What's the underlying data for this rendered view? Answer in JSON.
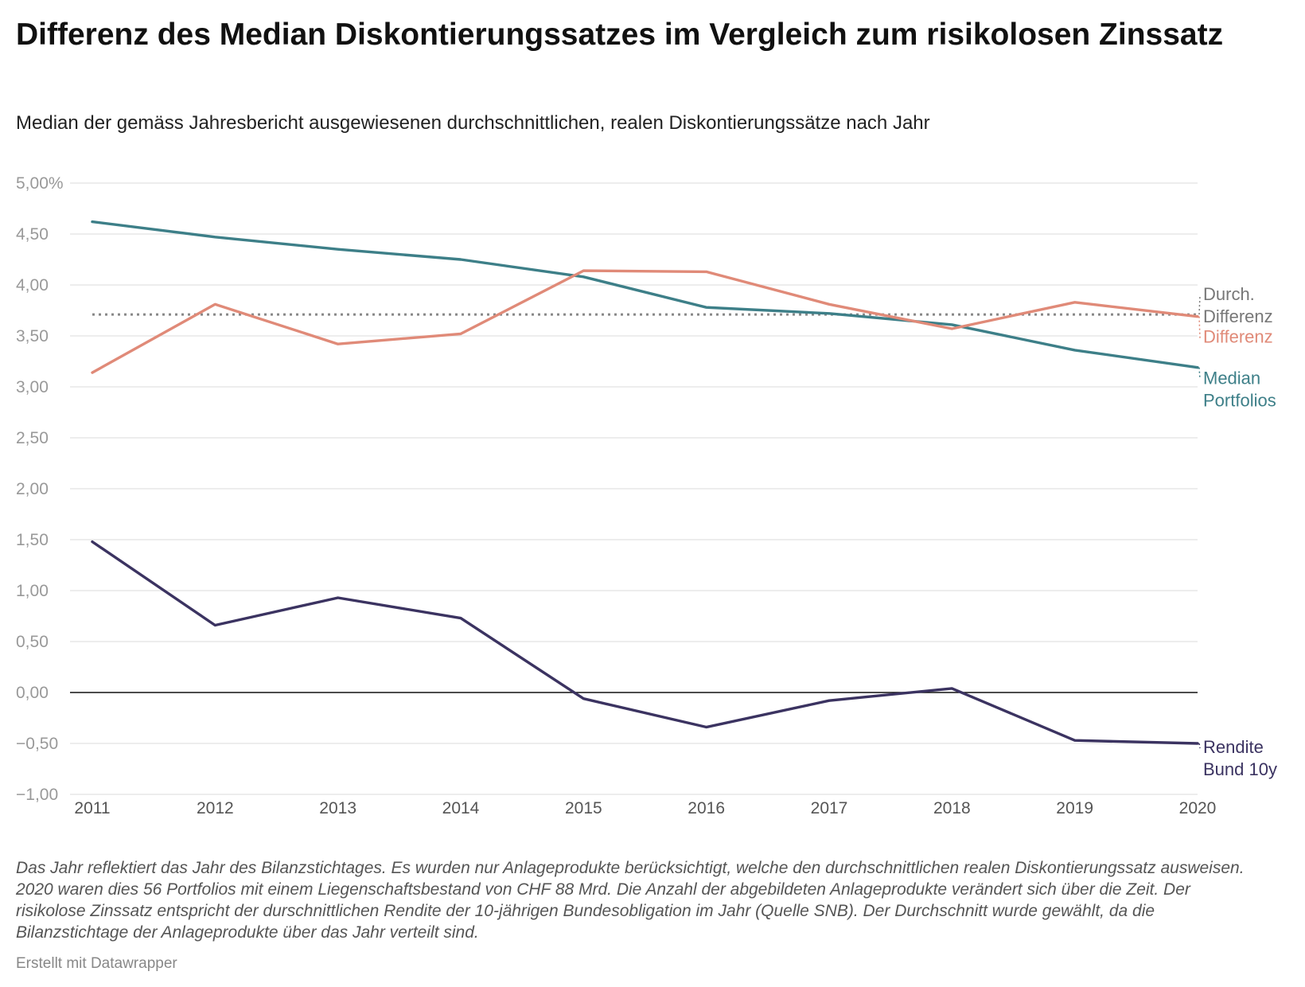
{
  "title": "Differenz des Median Diskontierungssatzes im Vergleich zum risikolosen Zinssatz",
  "subtitle": "Median der gemäss Jahresbericht ausgewiesenen durchschnittlichen, realen Diskontierungssätze nach Jahr",
  "notes": "Das Jahr reflektiert das Jahr des Bilanzstichtages. Es wurden nur Anlageprodukte berücksichtigt, welche den durchschnittlichen realen Diskontierungssatz ausweisen. 2020 waren dies 56 Portfolios mit einem Liegenschaftsbestand von CHF 88 Mrd. Die Anzahl der abgebildeten Anlageprodukte verändert sich über die Zeit. Der risikolose Zinssatz entspricht der durschnittlichen Rendite der 10-jährigen Bundesobligation im Jahr (Quelle SNB). Der Durchschnitt wurde gewählt, da die Bilanzstichtage der Anlageprodukte über das Jahr verteilt sind.",
  "credit": "Erstellt mit Datawrapper",
  "chart_data": {
    "type": "line",
    "x": [
      "2011",
      "2012",
      "2013",
      "2014",
      "2015",
      "2016",
      "2017",
      "2018",
      "2019",
      "2020"
    ],
    "ylim": [
      -1.0,
      5.0
    ],
    "yticks": [
      5.0,
      4.5,
      4.0,
      3.5,
      3.0,
      2.5,
      2.0,
      1.5,
      1.0,
      0.5,
      0.0,
      -0.5,
      -1.0
    ],
    "ytick_labels": [
      "5,00%",
      "4,50",
      "4,00",
      "3,50",
      "3,00",
      "2,50",
      "2,00",
      "1,50",
      "1,00",
      "0,50",
      "0,00",
      "−0,50",
      "−1,00"
    ],
    "grid": true,
    "legend": "direct labels at right end",
    "series": [
      {
        "name": "Median Portfolios",
        "label_lines": [
          "Median",
          "Portfolios"
        ],
        "color": "#3d7f88",
        "values": [
          4.62,
          4.47,
          4.35,
          4.25,
          4.08,
          3.78,
          3.72,
          3.61,
          3.36,
          3.19
        ]
      },
      {
        "name": "Differenz",
        "label_lines": [
          "Differenz"
        ],
        "color": "#e08a78",
        "values": [
          3.14,
          3.81,
          3.42,
          3.52,
          4.14,
          4.13,
          3.81,
          3.57,
          3.83,
          3.69
        ]
      },
      {
        "name": "Rendite Bund 10y",
        "label_lines": [
          "Rendite",
          "Bund 10y"
        ],
        "color": "#3b3361",
        "values": [
          1.48,
          0.66,
          0.93,
          0.73,
          -0.06,
          -0.34,
          -0.08,
          0.04,
          -0.47,
          -0.5
        ]
      }
    ],
    "reference_line": {
      "name": "Durch. Differenz",
      "label_lines": [
        "Durch.",
        "Differenz"
      ],
      "color": "#888888",
      "value": 3.71
    }
  }
}
